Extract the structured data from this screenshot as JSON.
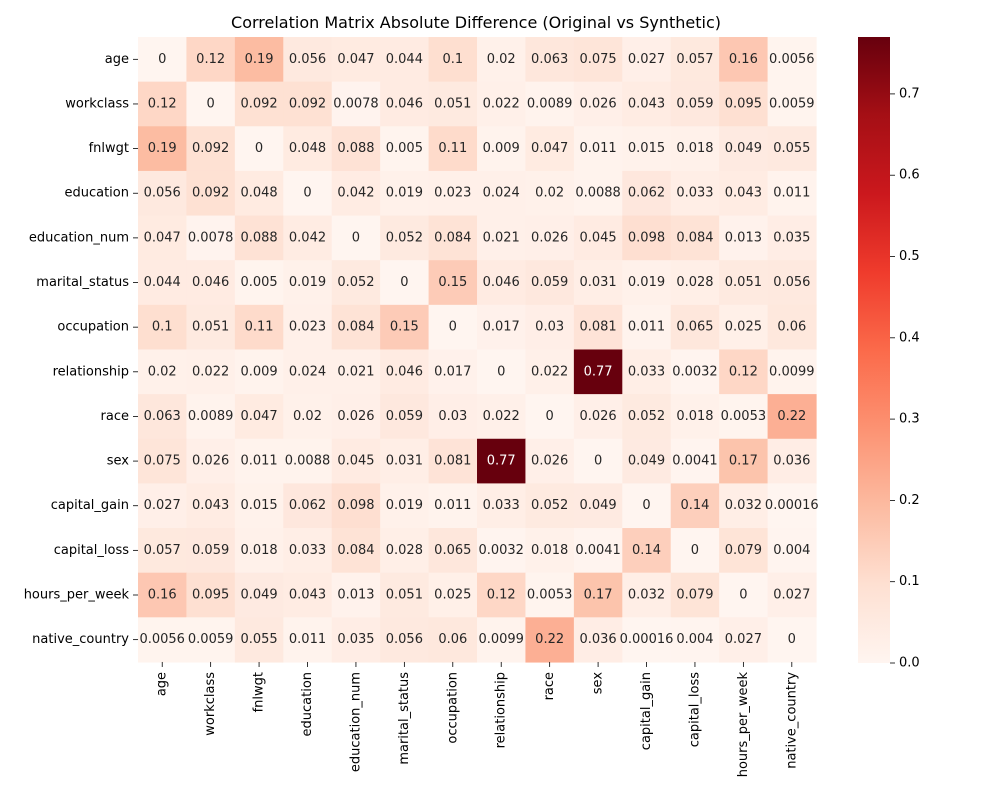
{
  "chart_data": {
    "type": "heatmap",
    "title": "Correlation Matrix Absolute Difference (Original vs Synthetic)",
    "xlabel": "",
    "ylabel": "",
    "colormap": "Reds",
    "vmin": 0,
    "vmax": 0.77,
    "colorbar_ticks": [
      "0.0",
      "0.1",
      "0.2",
      "0.3",
      "0.4",
      "0.5",
      "0.6",
      "0.7"
    ],
    "row_labels": [
      "age",
      "workclass",
      "fnlwgt",
      "education",
      "education_num",
      "marital_status",
      "occupation",
      "relationship",
      "race",
      "sex",
      "capital_gain",
      "capital_loss",
      "hours_per_week",
      "native_country"
    ],
    "col_labels": [
      "age",
      "workclass",
      "fnlwgt",
      "education",
      "education_num",
      "marital_status",
      "occupation",
      "relationship",
      "race",
      "sex",
      "capital_gain",
      "capital_loss",
      "hours_per_week",
      "native_country"
    ],
    "annotations": [
      [
        "0",
        "0.12",
        "0.19",
        "0.056",
        "0.047",
        "0.044",
        "0.1",
        "0.02",
        "0.063",
        "0.075",
        "0.027",
        "0.057",
        "0.16",
        "0.0056"
      ],
      [
        "0.12",
        "0",
        "0.092",
        "0.092",
        "0.0078",
        "0.046",
        "0.051",
        "0.022",
        "0.0089",
        "0.026",
        "0.043",
        "0.059",
        "0.095",
        "0.0059"
      ],
      [
        "0.19",
        "0.092",
        "0",
        "0.048",
        "0.088",
        "0.005",
        "0.11",
        "0.009",
        "0.047",
        "0.011",
        "0.015",
        "0.018",
        "0.049",
        "0.055"
      ],
      [
        "0.056",
        "0.092",
        "0.048",
        "0",
        "0.042",
        "0.019",
        "0.023",
        "0.024",
        "0.02",
        "0.0088",
        "0.062",
        "0.033",
        "0.043",
        "0.011"
      ],
      [
        "0.047",
        "0.0078",
        "0.088",
        "0.042",
        "0",
        "0.052",
        "0.084",
        "0.021",
        "0.026",
        "0.045",
        "0.098",
        "0.084",
        "0.013",
        "0.035"
      ],
      [
        "0.044",
        "0.046",
        "0.005",
        "0.019",
        "0.052",
        "0",
        "0.15",
        "0.046",
        "0.059",
        "0.031",
        "0.019",
        "0.028",
        "0.051",
        "0.056"
      ],
      [
        "0.1",
        "0.051",
        "0.11",
        "0.023",
        "0.084",
        "0.15",
        "0",
        "0.017",
        "0.03",
        "0.081",
        "0.011",
        "0.065",
        "0.025",
        "0.06"
      ],
      [
        "0.02",
        "0.022",
        "0.009",
        "0.024",
        "0.021",
        "0.046",
        "0.017",
        "0",
        "0.022",
        "0.77",
        "0.033",
        "0.0032",
        "0.12",
        "0.0099"
      ],
      [
        "0.063",
        "0.0089",
        "0.047",
        "0.02",
        "0.026",
        "0.059",
        "0.03",
        "0.022",
        "0",
        "0.026",
        "0.052",
        "0.018",
        "0.0053",
        "0.22"
      ],
      [
        "0.075",
        "0.026",
        "0.011",
        "0.0088",
        "0.045",
        "0.031",
        "0.081",
        "0.77",
        "0.026",
        "0",
        "0.049",
        "0.0041",
        "0.17",
        "0.036"
      ],
      [
        "0.027",
        "0.043",
        "0.015",
        "0.062",
        "0.098",
        "0.019",
        "0.011",
        "0.033",
        "0.052",
        "0.049",
        "0",
        "0.14",
        "0.032",
        "0.00016"
      ],
      [
        "0.057",
        "0.059",
        "0.018",
        "0.033",
        "0.084",
        "0.028",
        "0.065",
        "0.0032",
        "0.018",
        "0.0041",
        "0.14",
        "0",
        "0.079",
        "0.004"
      ],
      [
        "0.16",
        "0.095",
        "0.049",
        "0.043",
        "0.013",
        "0.051",
        "0.025",
        "0.12",
        "0.0053",
        "0.17",
        "0.032",
        "0.079",
        "0",
        "0.027"
      ],
      [
        "0.0056",
        "0.0059",
        "0.055",
        "0.011",
        "0.035",
        "0.056",
        "0.06",
        "0.0099",
        "0.22",
        "0.036",
        "0.00016",
        "0.004",
        "0.027",
        "0"
      ]
    ]
  }
}
